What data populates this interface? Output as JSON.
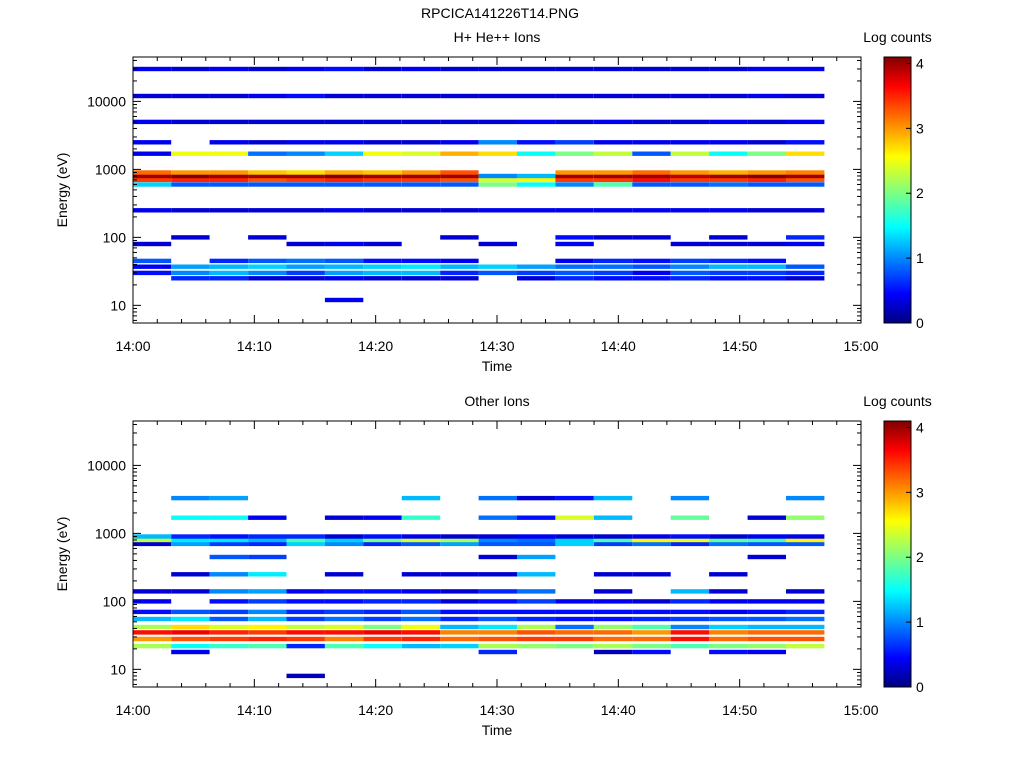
{
  "figure_title": "RPCICA141226T14.PNG",
  "chart_data": [
    {
      "type": "heatmap",
      "title": "H+ He++ Ions",
      "xlabel": "Time",
      "ylabel": "Energy (eV)",
      "x_ticks": [
        "14:00",
        "14:10",
        "14:20",
        "14:30",
        "14:40",
        "14:50",
        "15:00"
      ],
      "y_ticks": [
        "10",
        "100",
        "1000",
        "10000"
      ],
      "yscale": "log",
      "ylim": [
        5.5,
        45000
      ],
      "colorbar_label": "Log counts",
      "colorbar_ticks": [
        "0",
        "1",
        "2",
        "3",
        "4"
      ],
      "colorbar_range": [
        0,
        4.1
      ],
      "colormap": "jet",
      "time_bins": [
        "14:00:20",
        "14:03:30",
        "14:06:40",
        "14:09:50",
        "14:13:00",
        "14:16:10",
        "14:19:20",
        "14:22:30",
        "14:25:40",
        "14:28:50",
        "14:32:00",
        "14:35:10",
        "14:38:20",
        "14:41:30",
        "14:44:40",
        "14:47:50",
        "14:51:00",
        "14:54:10"
      ],
      "bins": [
        {
          "e": 12,
          "values": [
            null,
            null,
            null,
            null,
            null,
            0.4,
            null,
            null,
            null,
            null,
            null,
            null,
            null,
            null,
            null,
            null,
            null,
            null
          ]
        },
        {
          "e": 25,
          "values": [
            null,
            0.6,
            0.6,
            0.3,
            0.3,
            0.4,
            0.3,
            0.3,
            0.3,
            null,
            0.3,
            0.6,
            0.5,
            0.5,
            0.6,
            0.5,
            0.5,
            0.3
          ]
        },
        {
          "e": 30,
          "values": [
            0.5,
            1.0,
            1.2,
            1.0,
            0.7,
            1.1,
            1.2,
            1.2,
            0.6,
            0.8,
            0.7,
            0.8,
            0.7,
            0.4,
            0.8,
            0.7,
            0.7,
            0.6
          ]
        },
        {
          "e": 37,
          "values": [
            0.4,
            1.1,
            1.2,
            1.3,
            1.1,
            1.2,
            1.3,
            1.4,
            1.2,
            1.3,
            1.1,
            0.9,
            0.9,
            0.8,
            1.0,
            1.2,
            1.2,
            0.8
          ]
        },
        {
          "e": 45,
          "values": [
            0.8,
            null,
            0.6,
            0.8,
            0.9,
            0.8,
            0.5,
            0.5,
            0.4,
            null,
            null,
            0.4,
            0.6,
            0.5,
            0.7,
            0.6,
            0.5,
            null
          ]
        },
        {
          "e": 80,
          "values": [
            0.3,
            null,
            null,
            null,
            0.3,
            0.4,
            0.3,
            null,
            null,
            0.3,
            null,
            0.4,
            null,
            null,
            0.3,
            0.3,
            0.3,
            0.4
          ]
        },
        {
          "e": 100,
          "values": [
            null,
            0.3,
            null,
            0.3,
            null,
            null,
            null,
            null,
            0.3,
            null,
            null,
            0.5,
            0.3,
            0.3,
            null,
            0.3,
            null,
            0.6
          ]
        },
        {
          "e": 250,
          "values": [
            0.4,
            0.3,
            0.3,
            0.3,
            0.3,
            0.4,
            0.3,
            0.3,
            0.3,
            0.4,
            0.4,
            0.4,
            0.4,
            0.4,
            0.4,
            0.4,
            0.3,
            0.3
          ]
        },
        {
          "e": 600,
          "values": [
            1.3,
            0.8,
            0.8,
            0.8,
            0.8,
            0.8,
            0.8,
            0.8,
            0.8,
            2.0,
            1.5,
            1.0,
            1.8,
            0.8,
            0.8,
            0.9,
            0.8,
            0.8
          ]
        },
        {
          "e": 700,
          "values": [
            3.4,
            3.5,
            3.5,
            3.3,
            3.4,
            3.5,
            3.4,
            3.4,
            3.3,
            2.4,
            2.6,
            3.4,
            3.4,
            3.6,
            3.4,
            3.4,
            3.5,
            3.3
          ]
        },
        {
          "e": 800,
          "values": [
            4.0,
            4.1,
            4.0,
            4.0,
            4.0,
            4.1,
            4.0,
            4.0,
            4.0,
            1.0,
            1.2,
            4.0,
            4.0,
            4.0,
            3.9,
            4.0,
            4.1,
            4.0
          ]
        },
        {
          "e": 900,
          "values": [
            3.2,
            3.0,
            3.0,
            2.8,
            2.7,
            2.9,
            2.8,
            3.0,
            3.3,
            null,
            null,
            3.0,
            3.0,
            3.2,
            3.0,
            2.9,
            3.0,
            3.1
          ]
        },
        {
          "e": 1700,
          "values": [
            0.4,
            2.5,
            2.5,
            0.9,
            1.0,
            1.3,
            2.5,
            2.4,
            2.9,
            2.7,
            1.5,
            2.0,
            2.3,
            0.8,
            2.3,
            1.5,
            2.0,
            2.7
          ]
        },
        {
          "e": 2500,
          "values": [
            0.4,
            null,
            0.4,
            0.3,
            0.4,
            0.4,
            0.3,
            0.3,
            0.4,
            1.0,
            0.5,
            0.7,
            0.4,
            0.4,
            0.4,
            0.4,
            0.3,
            0.5
          ]
        },
        {
          "e": 5000,
          "values": [
            0.4,
            0.3,
            0.3,
            0.3,
            0.3,
            0.3,
            0.3,
            0.3,
            0.3,
            0.3,
            0.4,
            0.3,
            0.4,
            0.3,
            0.3,
            0.4,
            0.3,
            0.4
          ]
        },
        {
          "e": 12000,
          "values": [
            0.3,
            0.3,
            0.3,
            0.4,
            0.5,
            0.3,
            0.3,
            0.3,
            0.3,
            0.3,
            0.3,
            0.3,
            0.3,
            0.3,
            0.3,
            0.3,
            0.4,
            0.3
          ]
        },
        {
          "e": 30000,
          "values": [
            0.4,
            0.3,
            0.4,
            0.3,
            0.4,
            0.5,
            0.3,
            0.4,
            0.3,
            0.3,
            0.3,
            0.3,
            0.3,
            0.3,
            0.3,
            0.3,
            0.4,
            0.4
          ]
        }
      ]
    },
    {
      "type": "heatmap",
      "title": "Other Ions",
      "xlabel": "Time",
      "ylabel": "Energy (eV)",
      "x_ticks": [
        "14:00",
        "14:10",
        "14:20",
        "14:30",
        "14:40",
        "14:50",
        "15:00"
      ],
      "y_ticks": [
        "10",
        "100",
        "1000",
        "10000"
      ],
      "yscale": "log",
      "ylim": [
        5.5,
        45000
      ],
      "colorbar_label": "Log counts",
      "colorbar_ticks": [
        "0",
        "1",
        "2",
        "3",
        "4"
      ],
      "colorbar_range": [
        0,
        4.1
      ],
      "colormap": "jet",
      "time_bins": [
        "14:00:20",
        "14:03:30",
        "14:06:40",
        "14:09:50",
        "14:13:00",
        "14:16:10",
        "14:19:20",
        "14:22:30",
        "14:25:40",
        "14:28:50",
        "14:32:00",
        "14:35:10",
        "14:38:20",
        "14:41:30",
        "14:44:40",
        "14:47:50",
        "14:51:00",
        "14:54:10"
      ],
      "bins": [
        {
          "e": 8,
          "values": [
            null,
            null,
            null,
            null,
            0.2,
            null,
            null,
            null,
            null,
            null,
            null,
            null,
            null,
            null,
            null,
            null,
            null,
            null
          ]
        },
        {
          "e": 18,
          "values": [
            null,
            0.4,
            null,
            null,
            null,
            null,
            null,
            null,
            null,
            0.6,
            null,
            null,
            0.2,
            0.5,
            null,
            0.5,
            0.4,
            null
          ]
        },
        {
          "e": 22,
          "values": [
            2.2,
            1.5,
            1.7,
            1.8,
            0.6,
            1.8,
            1.5,
            1.2,
            1.3,
            2.2,
            2.1,
            2.0,
            2.2,
            2.0,
            1.8,
            2.0,
            2.1,
            2.3
          ]
        },
        {
          "e": 28,
          "values": [
            3.0,
            3.3,
            3.4,
            3.5,
            3.4,
            3.1,
            3.4,
            3.5,
            3.2,
            3.3,
            3.4,
            3.4,
            3.2,
            3.2,
            3.6,
            3.2,
            3.3,
            3.3
          ]
        },
        {
          "e": 35,
          "values": [
            3.6,
            3.7,
            3.5,
            3.4,
            3.6,
            3.6,
            3.7,
            3.6,
            3.1,
            3.1,
            3.3,
            3.2,
            3.2,
            3.0,
            3.6,
            3.1,
            3.2,
            3.2
          ]
        },
        {
          "e": 42,
          "values": [
            2.2,
            2.7,
            2.4,
            2.6,
            2.3,
            2.4,
            2.0,
            2.5,
            1.2,
            1.4,
            2.2,
            0.9,
            2.1,
            1.8,
            1.0,
            1.3,
            1.2,
            1.2
          ]
        },
        {
          "e": 55,
          "values": [
            1.2,
            1.4,
            0.8,
            1.2,
            0.7,
            0.9,
            0.7,
            0.9,
            0.6,
            0.8,
            0.6,
            0.5,
            0.5,
            0.6,
            0.7,
            0.8,
            0.8,
            0.9
          ]
        },
        {
          "e": 70,
          "values": [
            0.5,
            0.8,
            0.7,
            1.0,
            0.6,
            0.7,
            0.6,
            0.8,
            0.5,
            0.5,
            0.5,
            0.5,
            0.5,
            0.5,
            0.5,
            0.4,
            0.5,
            0.6
          ]
        },
        {
          "e": 100,
          "values": [
            0.4,
            null,
            0.5,
            0.7,
            0.5,
            0.5,
            0.6,
            0.6,
            0.3,
            0.5,
            0.7,
            0.4,
            0.4,
            0.3,
            0.6,
            0.4,
            0.4,
            0.4
          ]
        },
        {
          "e": 140,
          "values": [
            0.3,
            0.3,
            1.0,
            1.1,
            0.4,
            0.5,
            0.5,
            0.4,
            0.3,
            0.6,
            0.9,
            null,
            0.3,
            null,
            1.2,
            0.3,
            null,
            0.3
          ]
        },
        {
          "e": 250,
          "values": [
            null,
            0.3,
            1.0,
            1.4,
            null,
            0.3,
            null,
            0.3,
            0.3,
            0.3,
            1.2,
            null,
            0.3,
            0.3,
            null,
            0.3,
            null,
            null
          ]
        },
        {
          "e": 450,
          "values": [
            null,
            null,
            0.8,
            0.7,
            null,
            null,
            null,
            null,
            null,
            0.3,
            1.1,
            null,
            null,
            null,
            null,
            null,
            0.3,
            null
          ]
        },
        {
          "e": 700,
          "values": [
            0.3,
            1.1,
            0.7,
            0.6,
            1.3,
            1.0,
            0.6,
            0.8,
            1.1,
            0.8,
            0.8,
            1.3,
            0.7,
            0.9,
            0.6,
            0.9,
            0.8,
            0.8
          ]
        },
        {
          "e": 800,
          "values": [
            2.3,
            1.4,
            1.4,
            1.2,
            1.8,
            1.3,
            2.0,
            2.4,
            2.2,
            1.0,
            0.9,
            1.3,
            1.8,
            2.6,
            2.5,
            1.9,
            1.8,
            2.6
          ]
        },
        {
          "e": 900,
          "values": [
            1.2,
            0.6,
            0.5,
            0.6,
            0.6,
            0.3,
            0.5,
            0.4,
            0.3,
            0.3,
            0.4,
            0.3,
            0.3,
            0.4,
            0.5,
            0.3,
            0.4,
            0.4
          ]
        },
        {
          "e": 1700,
          "values": [
            null,
            1.5,
            1.5,
            0.4,
            null,
            0.3,
            0.4,
            1.7,
            null,
            0.9,
            0.5,
            2.4,
            1.2,
            null,
            1.9,
            null,
            0.3,
            2.1
          ]
        },
        {
          "e": 3300,
          "values": [
            null,
            1.0,
            1.1,
            null,
            null,
            null,
            null,
            1.2,
            null,
            0.9,
            0.3,
            0.5,
            1.2,
            null,
            1.0,
            null,
            null,
            1.0
          ]
        }
      ]
    }
  ]
}
